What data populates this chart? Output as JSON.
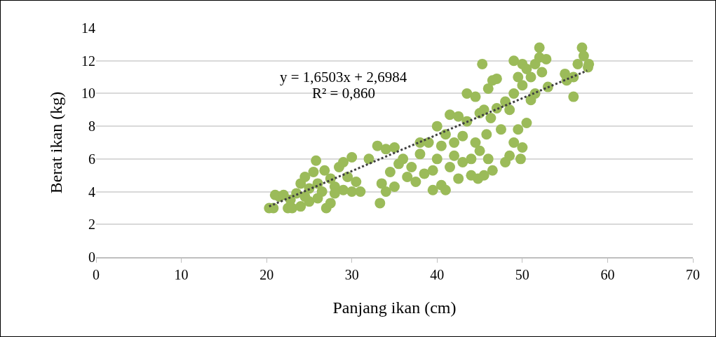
{
  "chart_data": {
    "type": "scatter",
    "xlabel": "Panjang ikan (cm)",
    "ylabel": "Berat ikan (kg)",
    "annotations": [
      "y = 1,6503x + 2,6984",
      "R² = 0,860"
    ],
    "series": [
      {
        "color": "#9bbb59",
        "marker": "circle",
        "x": [
          20.3,
          20.8,
          21,
          21.5,
          22,
          22.5,
          23,
          23.5,
          24,
          24,
          24.5,
          25,
          25,
          25.5,
          25.8,
          26,
          26.5,
          26.8,
          27,
          27.5,
          27.5,
          28,
          28.5,
          29,
          29,
          29.5,
          30,
          30,
          30.5,
          31,
          22.8,
          24.5,
          26,
          28,
          32,
          33,
          33.3,
          33.5,
          34,
          34,
          34.5,
          35,
          35,
          35.5,
          36,
          36.5,
          37,
          37.5,
          38,
          38,
          38.5,
          39,
          39.5,
          39.5,
          40,
          40,
          40.5,
          40.5,
          41,
          41,
          41.5,
          41.5,
          42,
          42,
          42.5,
          42.5,
          43,
          43,
          43.5,
          43.5,
          44,
          44,
          44.5,
          44.5,
          44.8,
          45,
          45,
          45.3,
          45.5,
          45.5,
          45.8,
          46,
          46,
          46.3,
          46.5,
          46.5,
          47,
          47,
          47.5,
          48,
          48,
          48.5,
          48.5,
          49,
          49,
          49,
          49.5,
          49.5,
          49.8,
          50,
          50,
          50,
          50.5,
          50.5,
          51,
          51,
          51.5,
          51.5,
          52,
          52,
          52.3,
          52.8,
          53,
          55,
          55.2,
          56,
          56,
          56.5,
          57,
          57.2,
          57.8,
          57.7
        ],
        "values": [
          3.0,
          3.0,
          3.8,
          3.7,
          3.8,
          3.0,
          3.0,
          3.9,
          3.1,
          4.5,
          4.9,
          3.4,
          4.2,
          5.2,
          5.9,
          4.5,
          4.0,
          5.3,
          3.0,
          3.3,
          4.8,
          4.3,
          5.5,
          5.8,
          4.1,
          4.9,
          6.1,
          4.0,
          4.6,
          4.0,
          3.5,
          3.7,
          3.6,
          3.9,
          6.0,
          6.8,
          3.3,
          4.5,
          6.6,
          4.0,
          5.2,
          6.7,
          4.3,
          5.7,
          6.0,
          4.9,
          5.5,
          4.6,
          6.3,
          7.0,
          5.1,
          7.0,
          4.1,
          5.3,
          8.0,
          6.0,
          4.4,
          6.8,
          7.5,
          4.1,
          8.7,
          5.5,
          6.2,
          7.0,
          8.6,
          4.8,
          5.8,
          7.4,
          10.0,
          8.3,
          6.0,
          5.0,
          9.8,
          7.0,
          4.8,
          8.8,
          6.5,
          11.8,
          5.0,
          9.0,
          7.5,
          6.0,
          10.3,
          8.5,
          10.8,
          5.3,
          10.9,
          9.1,
          7.8,
          9.5,
          5.8,
          6.2,
          9.0,
          12.0,
          10.0,
          7.0,
          11.0,
          7.8,
          6.0,
          11.8,
          6.7,
          10.5,
          8.2,
          11.5,
          11.0,
          9.6,
          11.8,
          10.0,
          12.8,
          12.2,
          11.3,
          12.1,
          10.4,
          11.2,
          10.8,
          9.8,
          11.0,
          11.8,
          12.8,
          12.3,
          11.8,
          11.6
        ]
      },
      {
        "type": "line",
        "color": "#404040",
        "line_style": "dotted",
        "marker": "none",
        "x": [
          20.3,
          57.6
        ],
        "values": [
          3.1,
          11.4
        ]
      }
    ],
    "xlim": [
      0,
      70
    ],
    "xticks": [
      0,
      10,
      20,
      30,
      40,
      50,
      60,
      70
    ],
    "ylim": [
      0,
      14
    ],
    "yticks": [
      0,
      2,
      4,
      6,
      8,
      10,
      12,
      14
    ],
    "grid": "y"
  }
}
